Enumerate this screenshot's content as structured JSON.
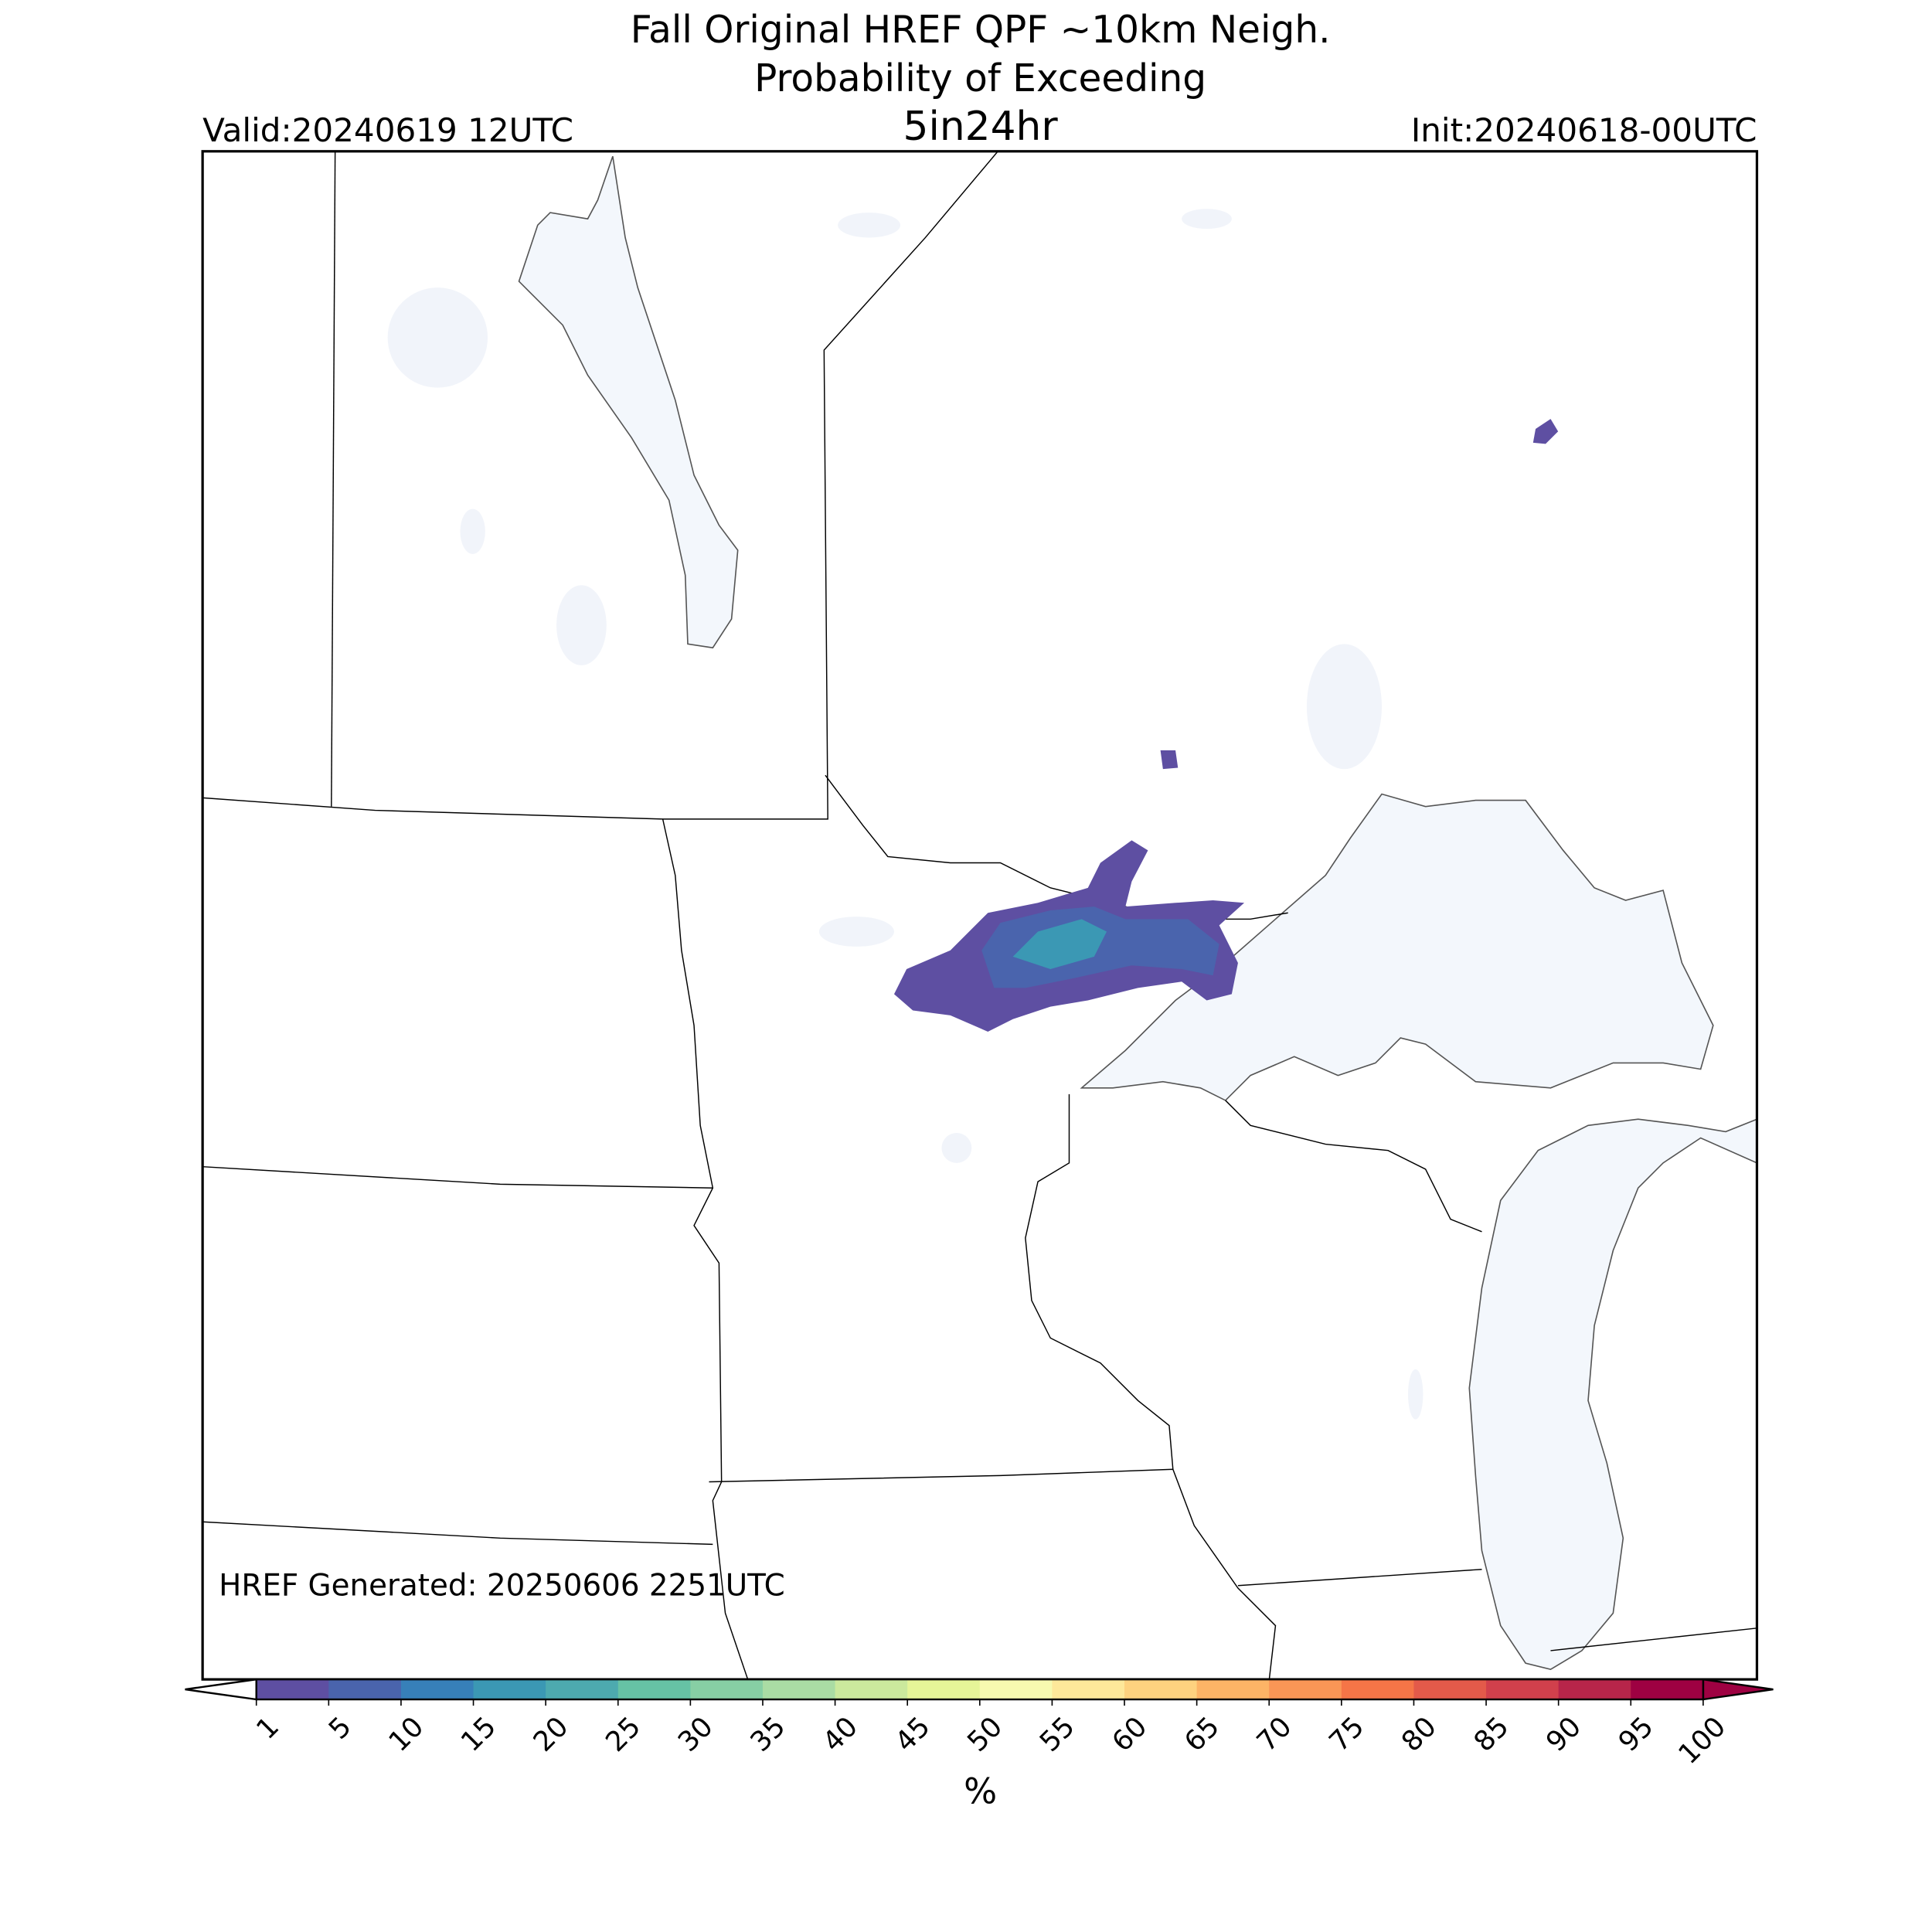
{
  "header": {
    "title_line1": "Fall Original HREF QPF ~10km Neigh.",
    "title_line2": "Probability of Exceeding",
    "threshold": "5in24hr",
    "valid": "Valid:20240619 12UTC",
    "init": "Init:20240618-00UTC"
  },
  "annotation": "HREF Generated: 20250606 2251UTC",
  "colorbar": {
    "ticks": [
      1,
      5,
      10,
      15,
      20,
      25,
      30,
      35,
      40,
      45,
      50,
      55,
      60,
      65,
      70,
      75,
      80,
      85,
      90,
      95,
      100
    ],
    "colors": [
      "#5e4fa2",
      "#4a64ad",
      "#3780b9",
      "#3b98b4",
      "#4daaaf",
      "#66c2a5",
      "#87cfa4",
      "#aadca4",
      "#cbe99d",
      "#e6f598",
      "#f7fab0",
      "#fee89a",
      "#fed27f",
      "#fdb466",
      "#fa9656",
      "#f57547",
      "#e35a4a",
      "#d1404c",
      "#b7254a",
      "#9e0142"
    ],
    "label": "%"
  }
}
